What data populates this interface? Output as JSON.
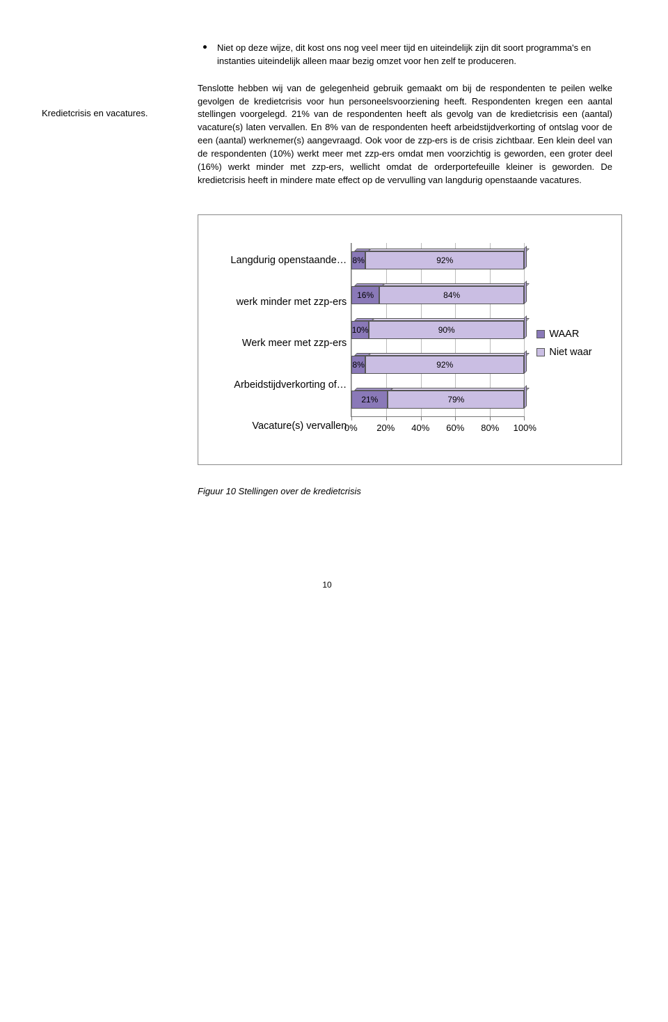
{
  "bullet_text": "Niet op deze wijze, dit kost ons nog veel meer tijd en uiteindelijk zijn dit soort programma's en instanties uiteindelijk alleen maar bezig omzet voor hen zelf te produceren.",
  "side_heading": "Kredietcrisis en vacatures.",
  "body_text": "Tenslotte hebben wij van de gelegenheid gebruik gemaakt om bij de respondenten te peilen welke gevolgen de kredietcrisis voor hun personeelsvoorziening heeft. Respondenten kregen een aantal stellingen voorgelegd. 21% van de respondenten heeft als gevolg van de kredietcrisis een (aantal) vacature(s) laten vervallen. En 8% van de respondenten heeft arbeidstijdverkorting of ontslag voor de een (aantal) werknemer(s) aangevraagd. Ook voor de zzp-ers is de crisis zichtbaar. Een klein deel van de respondenten (10%) werkt meer met zzp-ers omdat men voorzichtig is geworden, een groter deel (16%) werkt minder met zzp-ers, wellicht omdat de orderportefeuille kleiner is geworden. De kredietcrisis heeft in mindere mate effect op de vervulling van langdurig openstaande vacatures.",
  "chart": {
    "type": "stacked-horizontal-bar-3d",
    "categories": [
      "Langdurig openstaande…",
      "werk minder met zzp-ers",
      "Werk meer met zzp-ers",
      "Arbeidstijdverkorting of…",
      "Vacature(s) vervallen"
    ],
    "series": [
      {
        "name": "WAAR",
        "color_face": "#8a79b8",
        "color_top": "#a596cc",
        "color_side": "#6f609c",
        "values": [
          8,
          16,
          10,
          8,
          21
        ]
      },
      {
        "name": "Niet waar",
        "color_face": "#cabee3",
        "color_top": "#ddd4ee",
        "color_side": "#b2a4d2",
        "values": [
          92,
          84,
          90,
          92,
          79
        ]
      }
    ],
    "x_ticks": [
      0,
      20,
      40,
      60,
      80,
      100
    ],
    "x_tick_labels": [
      "0%",
      "20%",
      "40%",
      "60%",
      "80%",
      "100%"
    ],
    "value_labels": [
      [
        "8%",
        "92%"
      ],
      [
        "16%",
        "84%"
      ],
      [
        "10%",
        "90%"
      ],
      [
        "8%",
        "92%"
      ],
      [
        "21%",
        "79%"
      ]
    ],
    "grid_color": "#bbbbbb",
    "axis_color": "#777777",
    "label_fontsize": 14.5,
    "value_fontsize": 12
  },
  "legend_items": [
    "WAAR",
    "Niet waar"
  ],
  "caption": "Figuur 10 Stellingen over de kredietcrisis",
  "page_number": "10"
}
